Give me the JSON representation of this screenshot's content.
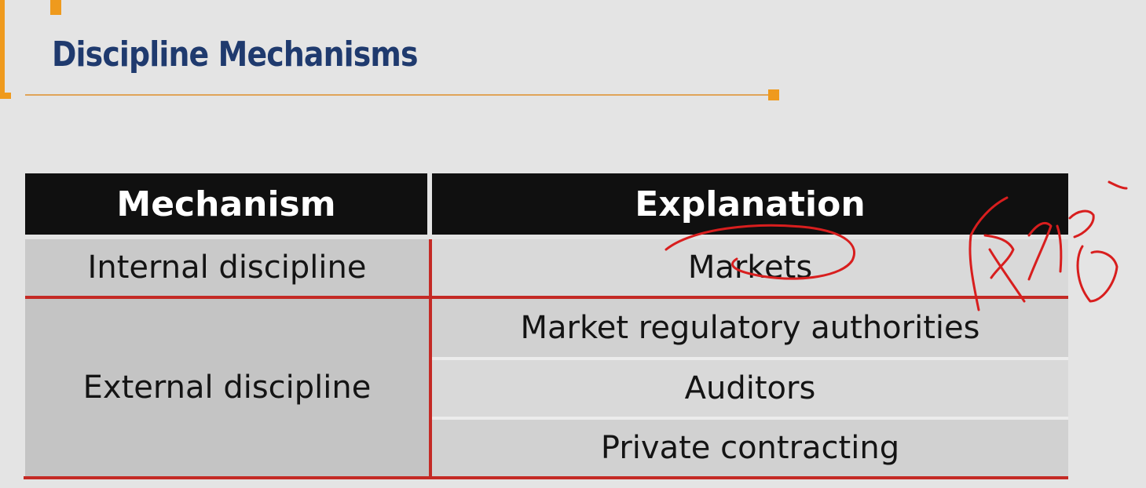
{
  "slide": {
    "title": "Discipline Mechanisms"
  },
  "table": {
    "headers": [
      "Mechanism",
      "Explanation"
    ],
    "rows": [
      {
        "mechanism": "Internal discipline",
        "explanations": [
          "Markets"
        ]
      },
      {
        "mechanism": "External discipline",
        "explanations": [
          "Market regulatory authorities",
          "Auditors",
          "Private contracting"
        ]
      }
    ]
  },
  "colors": {
    "title": "#1f3a6e",
    "accent": "#ef9a1d",
    "header_bg": "#101010",
    "rule": "#c42a25",
    "ink": "#d81e1e"
  }
}
